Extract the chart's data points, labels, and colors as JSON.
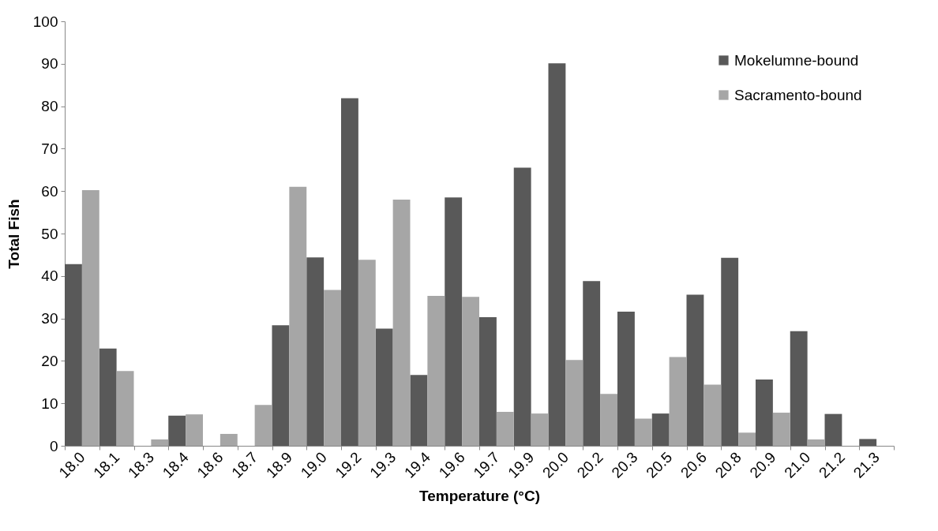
{
  "chart_data": {
    "type": "bar",
    "xlabel": "Temperature (°C)",
    "ylabel": "Total Fish",
    "categories": [
      "18.0",
      "18.1",
      "18.3",
      "18.4",
      "18.6",
      "18.7",
      "18.9",
      "19.0",
      "19.2",
      "19.3",
      "19.4",
      "19.6",
      "19.7",
      "19.9",
      "20.0",
      "20.2",
      "20.3",
      "20.5",
      "20.6",
      "20.8",
      "20.9",
      "21.0",
      "21.2",
      "21.3"
    ],
    "series": [
      {
        "name": "Mokelumne-bound",
        "color": "#595959",
        "values": [
          42.8,
          22.9,
          0,
          7.1,
          0,
          0,
          28.4,
          44.4,
          81.9,
          27.6,
          16.7,
          58.5,
          30.3,
          65.5,
          90.1,
          38.8,
          31.6,
          7.6,
          35.6,
          44.3,
          15.6,
          27.0,
          7.5,
          1.6
        ]
      },
      {
        "name": "Sacramento-bound",
        "color": "#a6a6a6",
        "values": [
          60.2,
          17.6,
          1.5,
          7.4,
          2.8,
          9.6,
          61.0,
          36.7,
          43.8,
          58.0,
          35.3,
          35.1,
          8.0,
          7.6,
          20.2,
          12.2,
          6.4,
          20.9,
          14.4,
          3.1,
          7.8,
          1.5,
          0,
          0
        ]
      }
    ],
    "ylim": [
      0,
      100
    ],
    "yticks": [
      0,
      10,
      20,
      30,
      40,
      50,
      60,
      70,
      80,
      90,
      100
    ],
    "grid": false,
    "legend": "top right"
  }
}
